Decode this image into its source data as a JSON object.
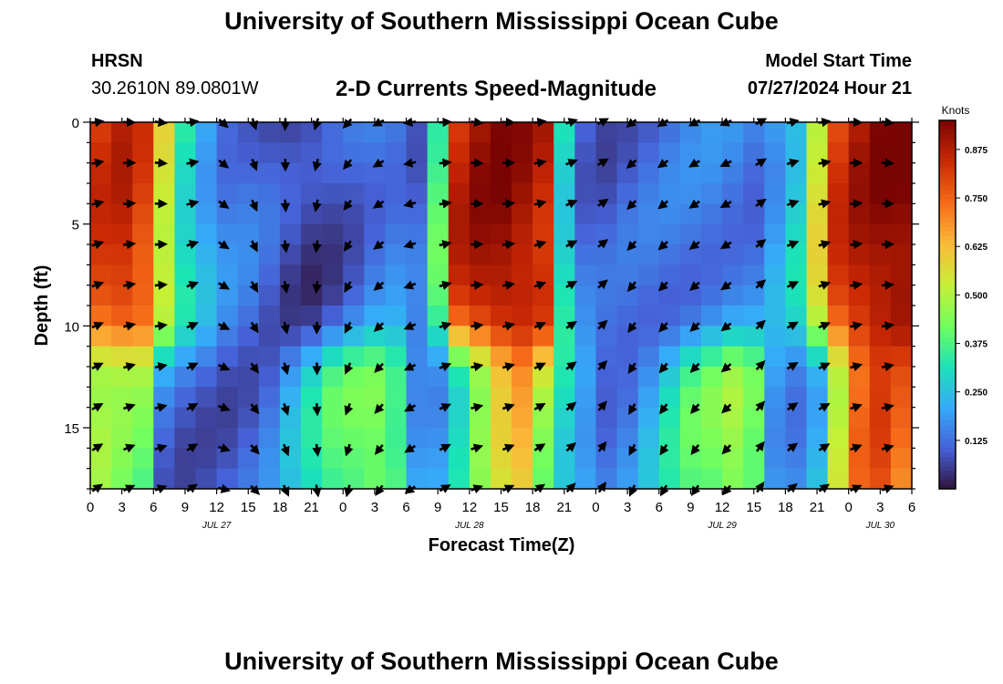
{
  "header": {
    "title": "University of Southern Mississippi Ocean Cube",
    "station_name": "HRSN",
    "station_coords": "30.2610N  89.0801W",
    "chart_subtitle": "2-D Currents Speed-Magnitude",
    "model_start_label": "Model Start Time",
    "model_start_value": "07/27/2024 Hour 21"
  },
  "footer": {
    "title": "University of Southern Mississippi Ocean Cube"
  },
  "colors": {
    "colormap": [
      "#30123b",
      "#4662d8",
      "#36aaf9",
      "#1ae4b6",
      "#72fe5e",
      "#c8ef34",
      "#faba39",
      "#f66b19",
      "#cb2a04",
      "#7a0403"
    ],
    "arrow": "#000000",
    "axis": "#000000"
  },
  "chart_data": {
    "type": "heatmap",
    "title": "2-D Currents Speed-Magnitude",
    "xlabel": "Forecast Time(Z)",
    "ylabel": "Depth (ft)",
    "x_unit": "hours from JUL 27 00Z",
    "xlim": [
      0,
      78
    ],
    "ylim": [
      18,
      0
    ],
    "x_ticks": [
      0,
      3,
      6,
      9,
      12,
      15,
      18,
      21,
      24,
      27,
      30,
      33,
      36,
      39,
      42,
      45,
      48,
      51,
      54,
      57,
      60,
      63,
      66,
      69,
      72,
      75,
      78
    ],
    "x_tick_labels": [
      "0",
      "3",
      "6",
      "9",
      "12",
      "15",
      "18",
      "21",
      "0",
      "3",
      "6",
      "9",
      "12",
      "15",
      "18",
      "21",
      "0",
      "3",
      "6",
      "9",
      "12",
      "15",
      "18",
      "21",
      "0",
      "3",
      "6"
    ],
    "date_labels": [
      {
        "x": 12,
        "label": "JUL 27"
      },
      {
        "x": 36,
        "label": "JUL 28"
      },
      {
        "x": 60,
        "label": "JUL 29"
      },
      {
        "x": 75,
        "label": "JUL 30"
      }
    ],
    "y_ticks": [
      0,
      5,
      10,
      15
    ],
    "y_tick_labels": [
      "0",
      "5",
      "10",
      "15"
    ],
    "colorbar": {
      "label": "Knots",
      "range": [
        0,
        0.95
      ],
      "ticks": [
        0.125,
        0.25,
        0.375,
        0.5,
        0.625,
        0.75,
        0.875
      ],
      "tick_labels": [
        "0.125",
        "0.250",
        "0.375",
        "0.500",
        "0.625",
        "0.750",
        "0.875"
      ]
    },
    "grid": {
      "hour_step": 2,
      "depth_step": 1,
      "hours": [
        0,
        2,
        4,
        6,
        8,
        10,
        12,
        14,
        16,
        18,
        20,
        22,
        24,
        26,
        28,
        30,
        32,
        34,
        36,
        38,
        40,
        42,
        44,
        46,
        48,
        50,
        52,
        54,
        56,
        58,
        60,
        62,
        64,
        66,
        68,
        70,
        72,
        74,
        76,
        78
      ],
      "depths": [
        0,
        1,
        2,
        3,
        4,
        5,
        6,
        7,
        8,
        9,
        10,
        11,
        12,
        13,
        14,
        15,
        16,
        17,
        18
      ],
      "speed_profile_surface": [
        0.82,
        0.85,
        0.8,
        0.55,
        0.32,
        0.22,
        0.15,
        0.13,
        0.1,
        0.07,
        0.06,
        0.08,
        0.11,
        0.14,
        0.15,
        0.12,
        0.38,
        0.85,
        0.9,
        0.92,
        0.9,
        0.86,
        0.3,
        0.12,
        0.1,
        0.11,
        0.12,
        0.13,
        0.14,
        0.15,
        0.15,
        0.14,
        0.2,
        0.28,
        0.55,
        0.82,
        0.88,
        0.92,
        0.94,
        0.9
      ],
      "speed_profile_bottom": [
        0.45,
        0.42,
        0.4,
        0.12,
        0.1,
        0.1,
        0.1,
        0.11,
        0.14,
        0.22,
        0.3,
        0.38,
        0.42,
        0.45,
        0.4,
        0.2,
        0.18,
        0.28,
        0.42,
        0.55,
        0.62,
        0.45,
        0.3,
        0.22,
        0.14,
        0.16,
        0.22,
        0.3,
        0.38,
        0.42,
        0.48,
        0.44,
        0.2,
        0.16,
        0.22,
        0.5,
        0.72,
        0.78,
        0.72,
        0.55
      ],
      "thermocline_depth_ft": 10.5,
      "arrow_hours": [
        0,
        3,
        6,
        9,
        12,
        15,
        18,
        21,
        24,
        27,
        30,
        33,
        36,
        39,
        42,
        45,
        48,
        51,
        54,
        57,
        60,
        63,
        66,
        69,
        72,
        75
      ],
      "arrow_depths": [
        0,
        2,
        4,
        6,
        8,
        10,
        12,
        14,
        16,
        18
      ],
      "arrow_direction_deg_by_hour": [
        20,
        10,
        5,
        20,
        330,
        300,
        280,
        265,
        240,
        220,
        200,
        15,
        5,
        10,
        20,
        30,
        40,
        230,
        225,
        220,
        215,
        40,
        25,
        20,
        10,
        5
      ]
    }
  }
}
